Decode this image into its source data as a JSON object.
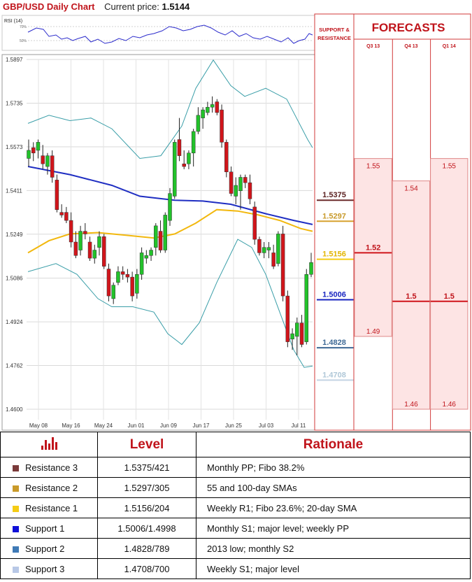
{
  "header": {
    "title": "GBP/USD Daily Chart",
    "price_label": "Current price:",
    "price_value": "1.5144"
  },
  "rsi": {
    "label": "RSI (14)",
    "ticks": [
      "70%",
      "50%"
    ]
  },
  "chart_data": {
    "type": "candlestick",
    "y_ticks": [
      "1.5897",
      "1.5735",
      "1.5573",
      "1.5411",
      "1.5249",
      "1.5086",
      "1.4924",
      "1.4762",
      "1.4600"
    ],
    "x_labels": [
      "May 08",
      "May 16",
      "May 24",
      "Jun 01",
      "Jun 09",
      "Jun 17",
      "Jun 25",
      "Jul 03",
      "Jul 11"
    ],
    "ylim": [
      1.46,
      1.5897
    ],
    "candles": [
      [
        1.553,
        1.56,
        1.55,
        1.556
      ],
      [
        1.557,
        1.559,
        1.552,
        1.555
      ],
      [
        1.556,
        1.56,
        1.553,
        1.559
      ],
      [
        1.554,
        1.558,
        1.549,
        1.551
      ],
      [
        1.55,
        1.555,
        1.547,
        1.554
      ],
      [
        1.554,
        1.556,
        1.544,
        1.546
      ],
      [
        1.545,
        1.547,
        1.533,
        1.534
      ],
      [
        1.533,
        1.536,
        1.531,
        1.532
      ],
      [
        1.533,
        1.535,
        1.529,
        1.53
      ],
      [
        1.53,
        1.533,
        1.52,
        1.522
      ],
      [
        1.522,
        1.526,
        1.516,
        1.517
      ],
      [
        1.519,
        1.528,
        1.517,
        1.526
      ],
      [
        1.526,
        1.529,
        1.523,
        1.525
      ],
      [
        1.522,
        1.524,
        1.515,
        1.516
      ],
      [
        1.516,
        1.521,
        1.514,
        1.519
      ],
      [
        1.52,
        1.526,
        1.517,
        1.524
      ],
      [
        1.524,
        1.525,
        1.512,
        1.513
      ],
      [
        1.512,
        1.514,
        1.5,
        1.502
      ],
      [
        1.501,
        1.507,
        1.499,
        1.506
      ],
      [
        1.507,
        1.513,
        1.506,
        1.511
      ],
      [
        1.511,
        1.513,
        1.508,
        1.51
      ],
      [
        1.51,
        1.512,
        1.507,
        1.509
      ],
      [
        1.509,
        1.511,
        1.5,
        1.502
      ],
      [
        1.503,
        1.512,
        1.501,
        1.51
      ],
      [
        1.51,
        1.52,
        1.508,
        1.518
      ],
      [
        1.516,
        1.519,
        1.514,
        1.517
      ],
      [
        1.517,
        1.52,
        1.515,
        1.519
      ],
      [
        1.52,
        1.529,
        1.517,
        1.528
      ],
      [
        1.526,
        1.53,
        1.518,
        1.519
      ],
      [
        1.519,
        1.533,
        1.518,
        1.532
      ],
      [
        1.53,
        1.542,
        1.528,
        1.54
      ],
      [
        1.539,
        1.56,
        1.538,
        1.559
      ],
      [
        1.56,
        1.568,
        1.552,
        1.554
      ],
      [
        1.551,
        1.556,
        1.549,
        1.55
      ],
      [
        1.551,
        1.556,
        1.549,
        1.555
      ],
      [
        1.555,
        1.564,
        1.55,
        1.563
      ],
      [
        1.563,
        1.572,
        1.562,
        1.569
      ],
      [
        1.568,
        1.572,
        1.564,
        1.571
      ],
      [
        1.57,
        1.574,
        1.569,
        1.572
      ],
      [
        1.572,
        1.576,
        1.57,
        1.573
      ],
      [
        1.574,
        1.575,
        1.569,
        1.57
      ],
      [
        1.571,
        1.573,
        1.557,
        1.559
      ],
      [
        1.559,
        1.56,
        1.546,
        1.548
      ],
      [
        1.548,
        1.55,
        1.539,
        1.54
      ],
      [
        1.539,
        1.546,
        1.536,
        1.543
      ],
      [
        1.541,
        1.547,
        1.534,
        1.546
      ],
      [
        1.546,
        1.547,
        1.542,
        1.544
      ],
      [
        1.544,
        1.547,
        1.536,
        1.538
      ],
      [
        1.535,
        1.537,
        1.521,
        1.523
      ],
      [
        1.523,
        1.524,
        1.517,
        1.518
      ],
      [
        1.518,
        1.522,
        1.516,
        1.52
      ],
      [
        1.519,
        1.522,
        1.516,
        1.52
      ],
      [
        1.518,
        1.521,
        1.512,
        1.513
      ],
      [
        1.514,
        1.526,
        1.513,
        1.525
      ],
      [
        1.525,
        1.528,
        1.5,
        1.502
      ],
      [
        1.502,
        1.504,
        1.483,
        1.485
      ],
      [
        1.486,
        1.49,
        1.482,
        1.488
      ],
      [
        1.487,
        1.494,
        1.48,
        1.492
      ],
      [
        1.492,
        1.495,
        1.483,
        1.484
      ],
      [
        1.485,
        1.512,
        1.484,
        1.51
      ],
      [
        1.51,
        1.518,
        1.509,
        1.5144
      ]
    ],
    "series": [
      {
        "name": "200-day SMA",
        "color": "#1f2ec2",
        "x": [
          40,
          100,
          160,
          200,
          250,
          290,
          330,
          380,
          420,
          447
        ],
        "y": [
          1.55,
          1.547,
          1.543,
          1.539,
          1.5375,
          1.5372,
          1.536,
          1.5325,
          1.53,
          1.5285
        ]
      },
      {
        "name": "55/100-day SMA",
        "color": "#f2b80e",
        "x": [
          40,
          70,
          100,
          140,
          180,
          220,
          250,
          280,
          310,
          340,
          370,
          400,
          430,
          447
        ],
        "y": [
          1.518,
          1.5225,
          1.525,
          1.5255,
          1.5245,
          1.5235,
          1.525,
          1.529,
          1.534,
          1.5335,
          1.532,
          1.53,
          1.527,
          1.526
        ]
      },
      {
        "name": "Bollinger upper",
        "color": "#3a9ea8",
        "x": [
          40,
          70,
          100,
          130,
          160,
          200,
          230,
          260,
          280,
          305,
          330,
          350,
          380,
          410,
          440,
          447
        ],
        "y": [
          1.566,
          1.569,
          1.567,
          1.568,
          1.564,
          1.553,
          1.554,
          1.565,
          1.579,
          1.5895,
          1.58,
          1.576,
          1.579,
          1.575,
          1.56,
          1.557
        ]
      },
      {
        "name": "Bollinger lower",
        "color": "#3a9ea8",
        "x": [
          40,
          80,
          110,
          140,
          160,
          190,
          220,
          240,
          260,
          285,
          310,
          340,
          360,
          380,
          400,
          420,
          435,
          447
        ],
        "y": [
          1.511,
          1.514,
          1.51,
          1.501,
          1.498,
          1.498,
          1.496,
          1.488,
          1.484,
          1.492,
          1.507,
          1.523,
          1.52,
          1.51,
          1.496,
          1.482,
          1.4755,
          1.476
        ]
      }
    ]
  },
  "levels_panel": {
    "header": "SUPPORT & RESISTANCE",
    "items": [
      {
        "value": "1.5375",
        "y": 1.5375,
        "color": "#6b2a2a",
        "text_color": "#5a1f1f"
      },
      {
        "value": "1.5297",
        "y": 1.5297,
        "color": "#d7a12e",
        "text_color": "#c89a2a"
      },
      {
        "value": "1.5156",
        "y": 1.5156,
        "color": "#f5cc14",
        "text_color": "#e2b500"
      },
      {
        "value": "1.5006",
        "y": 1.5006,
        "color": "#1723c0",
        "text_color": "#1723c0"
      },
      {
        "value": "1.4828",
        "y": 1.4828,
        "color": "#3f6a96",
        "text_color": "#3f6a96"
      },
      {
        "value": "1.4708",
        "y": 1.4708,
        "color": "#c3d3e3",
        "text_color": "#b0c8d8"
      }
    ]
  },
  "forecasts": {
    "title": "FORECASTS",
    "columns": [
      {
        "label": "Q3 13",
        "high": "1.55",
        "mid": "1.52",
        "low": "1.49",
        "high_y": 1.5483,
        "mid_y": 1.518,
        "low_y": 1.487
      },
      {
        "label": "Q4 13",
        "high": "1.54",
        "mid": "1.5",
        "low": "1.46",
        "high_y": 1.54,
        "mid_y": 1.5,
        "low_y": 1.46
      },
      {
        "label": "Q1 14",
        "high": "1.55",
        "mid": "1.5",
        "low": "1.46",
        "high_y": 1.5483,
        "mid_y": 1.5,
        "low_y": 1.46
      }
    ]
  },
  "table": {
    "headers": [
      "Level",
      "Rationale"
    ],
    "rows": [
      {
        "name": "Resistance 3",
        "level": "1.5375/421",
        "rationale": "Monthly PP; Fibo 38.2%",
        "color": "#7a3a3a"
      },
      {
        "name": "Resistance 2",
        "level": "1.5297/305",
        "rationale": "55 and 100-day SMAs",
        "color": "#c99a2a"
      },
      {
        "name": "Resistance 1",
        "level": "1.5156/204",
        "rationale": "Weekly R1; Fibo 23.6%; 20-day SMA",
        "color": "#f5cc14"
      },
      {
        "name": "Support 1",
        "level": "1.5006/1.4998",
        "rationale": "Monthly S1;  major level; weekly PP",
        "color": "#1010d8"
      },
      {
        "name": "Support 2",
        "level": "1.4828/789",
        "rationale": "2013 low; monthly S2",
        "color": "#3f7ab6"
      },
      {
        "name": "Support 3",
        "level": "1.4708/700",
        "rationale": "Weekly S1; major level",
        "color": "#b8c8e6"
      }
    ]
  }
}
